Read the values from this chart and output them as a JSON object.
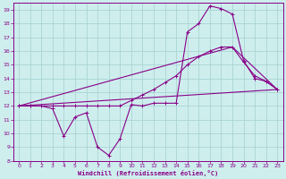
{
  "xlabel": "Windchill (Refroidissement éolien,°C)",
  "bg_color": "#ceeeed",
  "grid_color": "#aad4d4",
  "line_color": "#880088",
  "xlim": [
    -0.5,
    23.5
  ],
  "ylim": [
    8,
    19.5
  ],
  "xticks": [
    0,
    1,
    2,
    3,
    4,
    5,
    6,
    7,
    8,
    9,
    10,
    11,
    12,
    13,
    14,
    15,
    16,
    17,
    18,
    19,
    20,
    21,
    22,
    23
  ],
  "yticks": [
    8,
    9,
    10,
    11,
    12,
    13,
    14,
    15,
    16,
    17,
    18,
    19
  ],
  "series1_x": [
    0,
    1,
    2,
    3,
    4,
    5,
    6,
    7,
    8,
    9,
    10,
    11,
    12,
    13,
    14,
    15,
    16,
    17,
    18,
    19,
    20,
    21,
    22,
    23
  ],
  "series1_y": [
    12,
    12,
    12,
    11.8,
    9.8,
    11.2,
    11.5,
    9.0,
    8.4,
    9.6,
    12.1,
    12,
    12.2,
    12.2,
    12.2,
    17.4,
    18.0,
    19.3,
    19.1,
    18.7,
    15.3,
    14.0,
    13.8,
    13.2
  ],
  "series2_x": [
    0,
    1,
    2,
    3,
    4,
    5,
    6,
    7,
    8,
    9,
    10,
    11,
    12,
    13,
    14,
    15,
    16,
    17,
    18,
    19,
    20,
    21,
    22,
    23
  ],
  "series2_y": [
    12,
    12,
    12,
    12,
    12,
    12,
    12,
    12,
    12,
    12,
    12.4,
    12.8,
    13.2,
    13.7,
    14.2,
    15.0,
    15.6,
    16.0,
    16.3,
    16.3,
    15.2,
    14.2,
    13.8,
    13.2
  ],
  "series3_x": [
    0,
    23
  ],
  "series3_y": [
    12,
    13.2
  ],
  "series4_x": [
    0,
    19,
    23
  ],
  "series4_y": [
    12,
    16.3,
    13.2
  ]
}
